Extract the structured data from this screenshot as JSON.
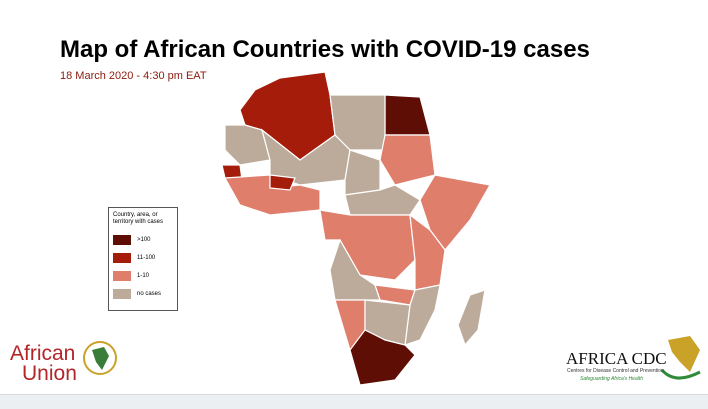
{
  "header": {
    "title": "Map of African Countries with COVID-19 cases",
    "subtitle": "18 March 2020 - 4:30 pm EAT"
  },
  "legend": {
    "title": "Country, area, or territory with cases",
    "items": [
      {
        "label": ">100",
        "color": "#5e0e04"
      },
      {
        "label": "11-100",
        "color": "#a51c0a"
      },
      {
        "label": "1-10",
        "color": "#e07e6c"
      },
      {
        "label": "no cases",
        "color": "#bcab9a"
      }
    ]
  },
  "logos": {
    "au_line1": "African",
    "au_line2": "Union",
    "cdc_name": "AFRICA CDC",
    "cdc_tagline": "Centres for Disease Control and Prevention",
    "cdc_motto": "Safeguarding Africa's Health"
  }
}
